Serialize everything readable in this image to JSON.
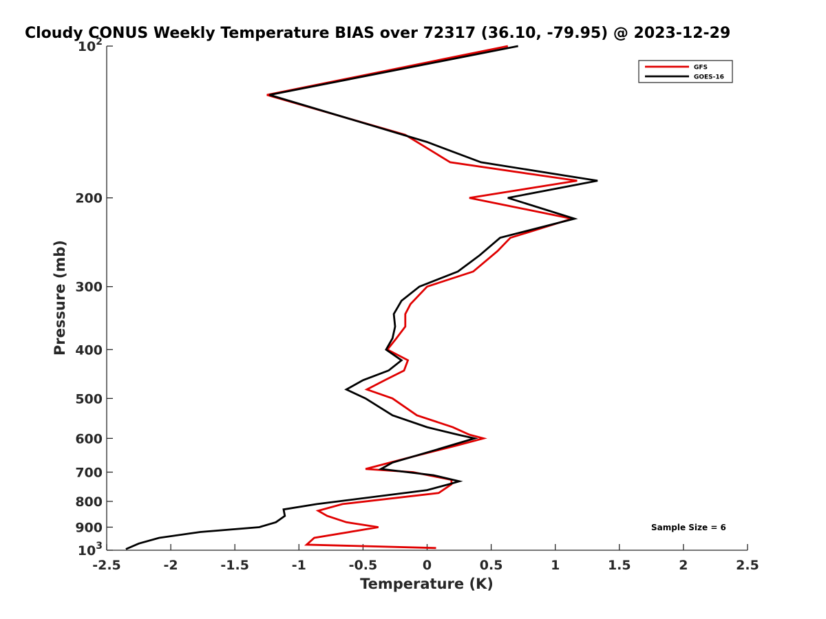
{
  "chart_data": {
    "type": "line",
    "title": "Cloudy CONUS Weekly Temperature BIAS over 72317 (36.10, -79.95) @ 2023-12-29",
    "xlabel": "Temperature (K)",
    "ylabel": "Pressure (mb)",
    "xlim": [
      -2.5,
      2.5
    ],
    "ylim": [
      100,
      1000
    ],
    "y_scale": "log",
    "y_reversed": true,
    "x_ticks": [
      "-2.5",
      "-2",
      "-1.5",
      "-1",
      "-0.5",
      "0",
      "0.5",
      "1",
      "1.5",
      "2",
      "2.5"
    ],
    "x_tick_values": [
      -2.5,
      -2,
      -1.5,
      -1,
      -0.5,
      0,
      0.5,
      1,
      1.5,
      2,
      2.5
    ],
    "y_ticks": [
      {
        "value": 100,
        "base": "10",
        "exp": "2"
      },
      {
        "value": 200,
        "label": "200"
      },
      {
        "value": 300,
        "label": "300"
      },
      {
        "value": 400,
        "label": "400"
      },
      {
        "value": 500,
        "label": "500"
      },
      {
        "value": 600,
        "label": "600"
      },
      {
        "value": 700,
        "label": "700"
      },
      {
        "value": 800,
        "label": "800"
      },
      {
        "value": 900,
        "label": "900"
      },
      {
        "value": 1000,
        "base": "10",
        "exp": "3"
      }
    ],
    "grid": false,
    "legend_position": "top-right",
    "annotation": "Sample Size = 6",
    "series": [
      {
        "name": "GFS",
        "color": "#e00000",
        "points": [
          [
            0.63,
            100
          ],
          [
            -1.25,
            125
          ],
          [
            -0.17,
            150
          ],
          [
            0.18,
            170
          ],
          [
            1.17,
            185
          ],
          [
            0.33,
            200
          ],
          [
            1.13,
            220
          ],
          [
            0.65,
            240
          ],
          [
            0.55,
            255
          ],
          [
            0.36,
            280
          ],
          [
            0.0,
            300
          ],
          [
            -0.13,
            325
          ],
          [
            -0.17,
            340
          ],
          [
            -0.17,
            360
          ],
          [
            -0.24,
            380
          ],
          [
            -0.31,
            400
          ],
          [
            -0.15,
            420
          ],
          [
            -0.18,
            440
          ],
          [
            -0.33,
            460
          ],
          [
            -0.47,
            480
          ],
          [
            -0.27,
            500
          ],
          [
            -0.08,
            540
          ],
          [
            0.2,
            570
          ],
          [
            0.33,
            590
          ],
          [
            0.44,
            600
          ],
          [
            0.23,
            620
          ],
          [
            -0.09,
            650
          ],
          [
            -0.48,
            690
          ],
          [
            -0.11,
            700
          ],
          [
            0.19,
            725
          ],
          [
            0.19,
            740
          ],
          [
            0.09,
            770
          ],
          [
            -0.66,
            810
          ],
          [
            -0.85,
            835
          ],
          [
            -0.78,
            855
          ],
          [
            -0.63,
            880
          ],
          [
            -0.38,
            900
          ],
          [
            -0.88,
            945
          ],
          [
            -0.94,
            975
          ],
          [
            0.07,
            990
          ]
        ]
      },
      {
        "name": "GOES-16",
        "color": "#000000",
        "points": [
          [
            0.71,
            100
          ],
          [
            -1.23,
            125
          ],
          [
            0.0,
            155
          ],
          [
            0.42,
            170
          ],
          [
            1.33,
            185
          ],
          [
            0.63,
            200
          ],
          [
            1.15,
            220
          ],
          [
            0.57,
            240
          ],
          [
            0.41,
            260
          ],
          [
            0.24,
            280
          ],
          [
            -0.06,
            300
          ],
          [
            -0.2,
            320
          ],
          [
            -0.26,
            340
          ],
          [
            -0.25,
            360
          ],
          [
            -0.27,
            380
          ],
          [
            -0.32,
            400
          ],
          [
            -0.2,
            420
          ],
          [
            -0.3,
            440
          ],
          [
            -0.5,
            460
          ],
          [
            -0.63,
            480
          ],
          [
            -0.48,
            500
          ],
          [
            -0.27,
            540
          ],
          [
            0.0,
            570
          ],
          [
            0.24,
            590
          ],
          [
            0.37,
            600
          ],
          [
            0.09,
            630
          ],
          [
            -0.27,
            670
          ],
          [
            -0.36,
            690
          ],
          [
            0.05,
            710
          ],
          [
            0.25,
            730
          ],
          [
            0.17,
            740
          ],
          [
            0.0,
            760
          ],
          [
            -0.86,
            810
          ],
          [
            -1.12,
            830
          ],
          [
            -1.11,
            855
          ],
          [
            -1.18,
            880
          ],
          [
            -1.31,
            900
          ],
          [
            -1.77,
            920
          ],
          [
            -2.09,
            945
          ],
          [
            -2.25,
            970
          ],
          [
            -2.35,
            995
          ]
        ]
      }
    ]
  }
}
